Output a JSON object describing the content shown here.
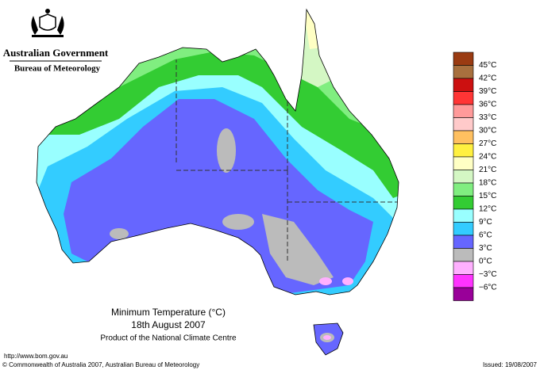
{
  "header": {
    "government": "Australian Government",
    "agency": "Bureau of Meteorology"
  },
  "map": {
    "title": "Minimum Temperature (°C)",
    "date": "18th August 2007",
    "product": "Product of the National Climate Centre"
  },
  "legend": {
    "colors": [
      "#9a3b12",
      "#a8703e",
      "#cc1010",
      "#ff3535",
      "#ff9a9a",
      "#ffcaca",
      "#ffc060",
      "#fff040",
      "#ffffc4",
      "#d4f7c4",
      "#80ee80",
      "#33cc33",
      "#99ffff",
      "#33ccff",
      "#6666ff",
      "#bbbbbb",
      "#ffb0ff",
      "#ff33ff",
      "#990099"
    ],
    "labels": [
      "45°C",
      "42°C",
      "39°C",
      "36°C",
      "33°C",
      "30°C",
      "27°C",
      "24°C",
      "21°C",
      "18°C",
      "15°C",
      "12°C",
      "9°C",
      "6°C",
      "3°C",
      "0°C",
      "−3°C",
      "−6°C"
    ]
  },
  "footer": {
    "url": "http://www.bom.gov.au",
    "copyright": "© Commonwealth of Australia 2007, Australian Bureau of Meteorology",
    "issued": "Issued: 19/08/2007"
  }
}
